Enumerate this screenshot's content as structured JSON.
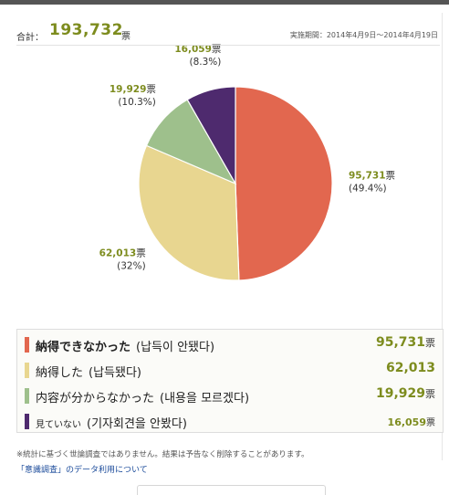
{
  "header": {
    "total_label": "合計：",
    "total_value": "193,732",
    "total_unit": "票",
    "period_label": "実施期間：",
    "period_dates": "2014年4月9日～2014年4月19日"
  },
  "chart_data": {
    "type": "pie",
    "unit": "票",
    "slices": [
      {
        "label": "納得できなかった",
        "label_ko": "(납득이 안됐다)",
        "value": 95731,
        "value_text": "95,731",
        "percent_text": "(49.4%)",
        "color": "#e2674f"
      },
      {
        "label": "納得した",
        "label_ko": "(납득됐다)",
        "value": 62013,
        "value_text": "62,013",
        "percent_text": "(32%)",
        "color": "#e8d690"
      },
      {
        "label": "内容が分からなかった",
        "label_ko": "(내용을 모르겠다)",
        "value": 19929,
        "value_text": "19,929",
        "percent_text": "(10.3%)",
        "color": "#9ec08c"
      },
      {
        "label": "見ていない",
        "label_ko": "(기자회견을 안봤다)",
        "value": 16059,
        "value_text": "16,059",
        "percent_text": "(8.3%)",
        "color": "#4e2a6e"
      }
    ]
  },
  "footer": {
    "note": "※統計に基づく世論調査ではありません。結果は予告なく削除することがあります。",
    "link_text": "「意識調査」",
    "link_suffix": "のデータ利用について"
  }
}
